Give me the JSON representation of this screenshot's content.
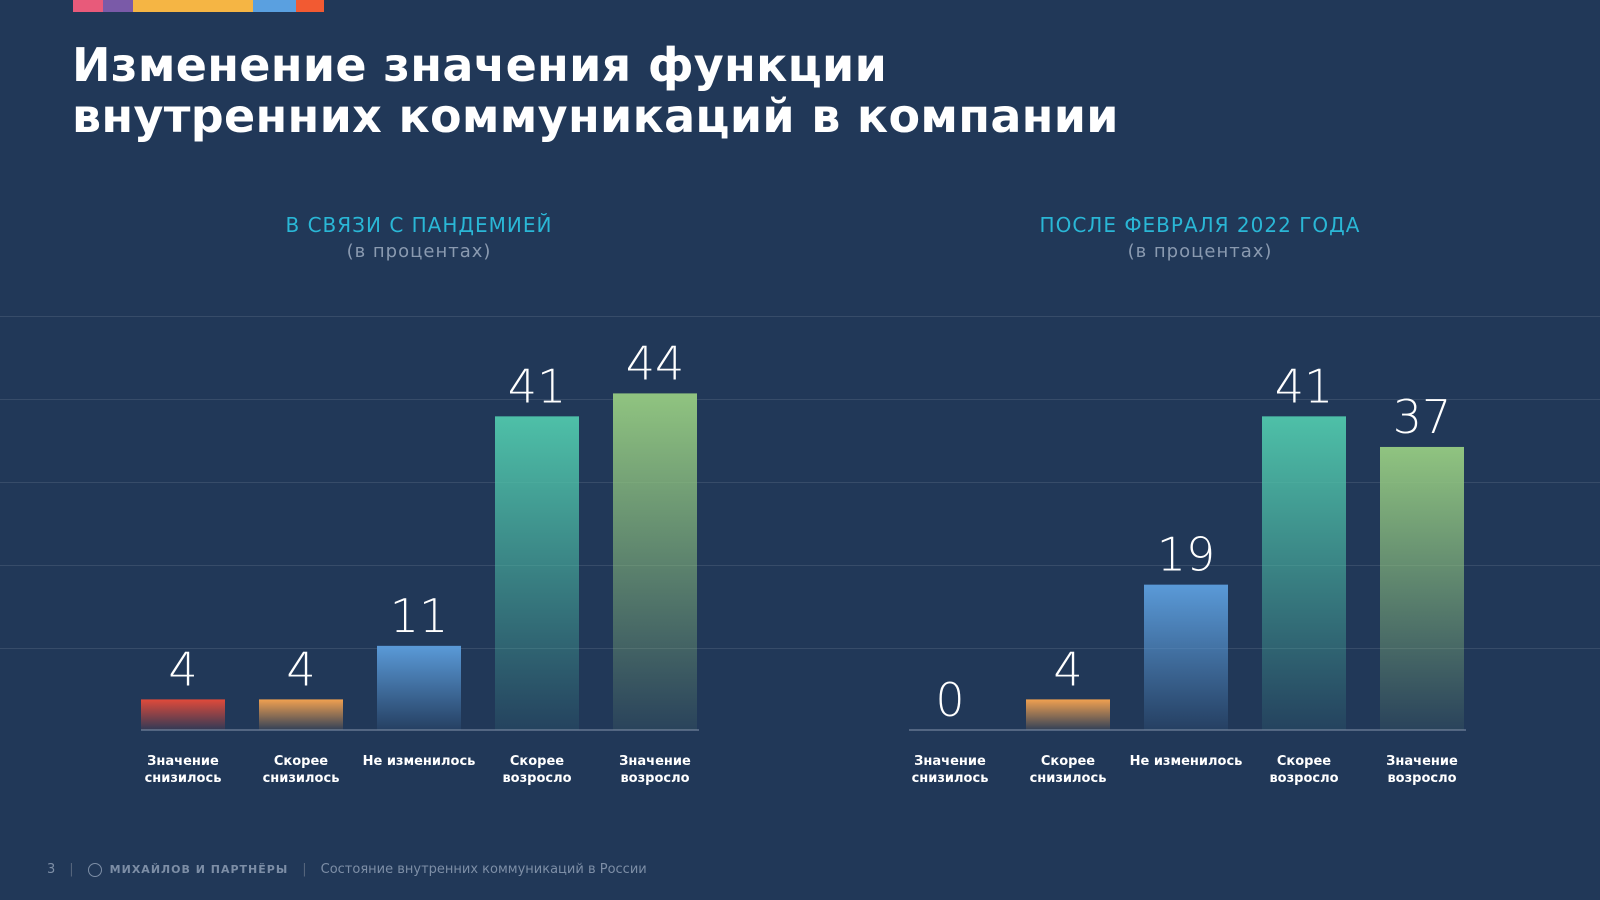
{
  "title_line1": "Изменение значения функции",
  "title_line2": "внутренних коммуникаций в компании",
  "strip_colors": [
    "#e85a7a",
    "#7a5aa8",
    "#f5b544",
    "#f5b544",
    "#f5b544",
    "#5aa0e0",
    "#f25a32"
  ],
  "chart_data": [
    {
      "type": "bar",
      "title": "В СВЯЗИ С ПАНДЕМИЕЙ",
      "subtitle": "(в процентах)",
      "categories": [
        [
          "Значение",
          "снизилось"
        ],
        [
          "Скорее",
          "снизилось"
        ],
        [
          "Не изменилось"
        ],
        [
          "Скорее",
          "возросло"
        ],
        [
          "Значение",
          "возросло"
        ]
      ],
      "values": [
        4,
        4,
        11,
        41,
        44
      ],
      "value_labels": [
        "4",
        "4",
        "11",
        "41",
        "44"
      ],
      "colors": [
        "#e04a3a",
        "#f0a050",
        "#5a9ad8",
        "#4ec0a8",
        "#90c480"
      ],
      "ylim": [
        0,
        50
      ],
      "grid": true
    },
    {
      "type": "bar",
      "title": "ПОСЛЕ ФЕВРАЛЯ 2022 ГОДА",
      "subtitle": "(в процентах)",
      "categories": [
        [
          "Значение",
          "снизилось"
        ],
        [
          "Скорее",
          "снизилось"
        ],
        [
          "Не изменилось"
        ],
        [
          "Скорее",
          "возросло"
        ],
        [
          "Значение",
          "возросло"
        ]
      ],
      "values": [
        0,
        4,
        19,
        41,
        37
      ],
      "value_labels": [
        "0",
        "4",
        "19",
        "41",
        "37"
      ],
      "colors": [
        "#e04a3a",
        "#f0a050",
        "#5a9ad8",
        "#4ec0a8",
        "#90c480"
      ],
      "ylim": [
        0,
        50
      ],
      "grid": true
    }
  ],
  "footer": {
    "page_number": "3",
    "brand": "МИХАЙЛОВ И ПАРТНЁРЫ",
    "report_title": "Состояние внутренних коммуникаций в России"
  }
}
